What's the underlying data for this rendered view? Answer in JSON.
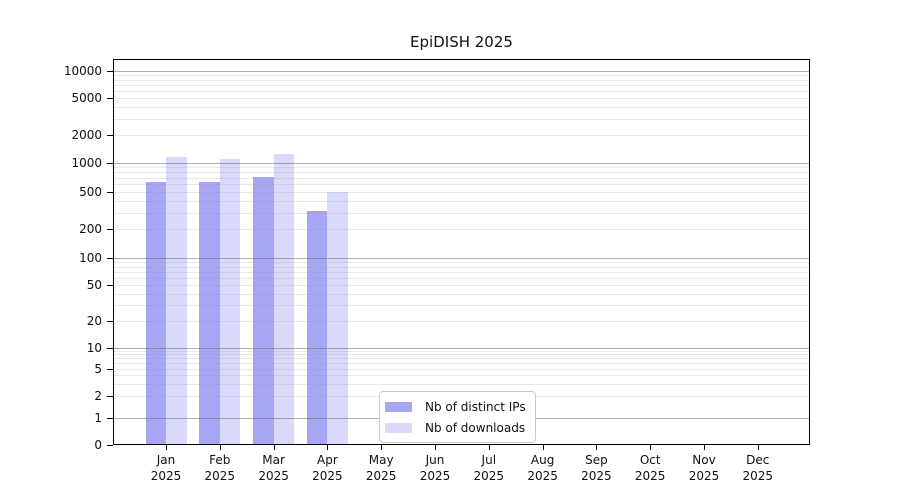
{
  "title": "EpiDISH 2025",
  "colors": {
    "distinct_ips": "#a6a6f4",
    "downloads": "#d9d9f9",
    "grid_major": "#b0b0b0",
    "grid_minor": "#e6e6e6",
    "spine": "#000000",
    "background": "#ffffff"
  },
  "legend": {
    "items": [
      {
        "label": "Nb of distinct IPs",
        "color": "#a6a6f4"
      },
      {
        "label": "Nb of downloads",
        "color": "#d9d9f9"
      }
    ]
  },
  "y_axis": {
    "tick_labels": [
      "0",
      "1",
      "2",
      "5",
      "10",
      "20",
      "50",
      "100",
      "200",
      "500",
      "1000",
      "2000",
      "5000",
      "10000"
    ]
  },
  "x_axis": {
    "year": "2025",
    "months": [
      "Jan",
      "Feb",
      "Mar",
      "Apr",
      "May",
      "Jun",
      "Jul",
      "Aug",
      "Sep",
      "Oct",
      "Nov",
      "Dec"
    ]
  },
  "chart_data": {
    "type": "bar",
    "title": "EpiDISH 2025",
    "categories": [
      "Jan 2025",
      "Feb 2025",
      "Mar 2025",
      "Apr 2025",
      "May 2025",
      "Jun 2025",
      "Jul 2025",
      "Aug 2025",
      "Sep 2025",
      "Oct 2025",
      "Nov 2025",
      "Dec 2025"
    ],
    "series": [
      {
        "name": "Nb of distinct IPs",
        "color": "#a6a6f4",
        "values": [
          630,
          635,
          720,
          315,
          0,
          0,
          0,
          0,
          0,
          0,
          0,
          0
        ]
      },
      {
        "name": "Nb of downloads",
        "color": "#d9d9f9",
        "values": [
          1150,
          1100,
          1250,
          500,
          0,
          0,
          0,
          0,
          0,
          0,
          0,
          0
        ]
      }
    ],
    "xlabel": "",
    "ylabel": "",
    "yscale": "symlog",
    "yticks": [
      0,
      1,
      2,
      5,
      10,
      20,
      50,
      100,
      200,
      500,
      1000,
      2000,
      5000,
      10000
    ],
    "ylim": [
      0,
      13000
    ],
    "grid": "both-horizontal",
    "legend_position": "lower center-right inside plot"
  }
}
